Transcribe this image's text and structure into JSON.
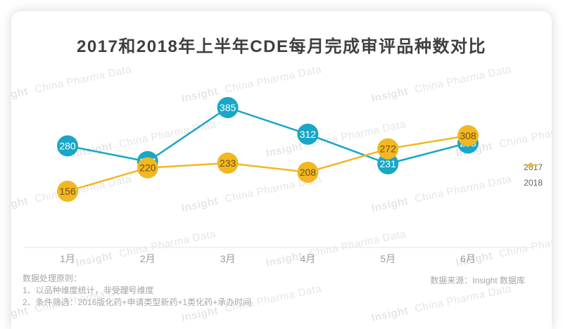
{
  "chart_data": {
    "type": "line",
    "title": "2017和2018年上半年CDE每月完成审评品种数对比",
    "categories": [
      "1月",
      "2月",
      "3月",
      "4月",
      "5月",
      "6月"
    ],
    "series": [
      {
        "name": "2017",
        "color": "#18a7c7",
        "label_color": "#ffffff",
        "values": [
          280,
          237,
          385,
          312,
          231,
          288
        ]
      },
      {
        "name": "2018",
        "color": "#f2b722",
        "label_color": "#6d5414",
        "values": [
          156,
          220,
          233,
          208,
          272,
          308
        ]
      }
    ],
    "xlabel": "",
    "ylabel": "",
    "ylim": [
      120,
      420
    ],
    "grid": false,
    "y_axis_visible": false,
    "legend_position": "right",
    "point_labels_visible": true
  },
  "watermark": {
    "bold": "Insight",
    "rest": "China Pharma Data"
  },
  "footer": {
    "notes_title": "数据处理原则：",
    "note1": "1、以品种维度统计，非受理号维度",
    "note2": "2、条件筛选：2016版化药+申请类型新药+1类化药+承办时间",
    "source": "数据来源：Insight 数据库"
  }
}
